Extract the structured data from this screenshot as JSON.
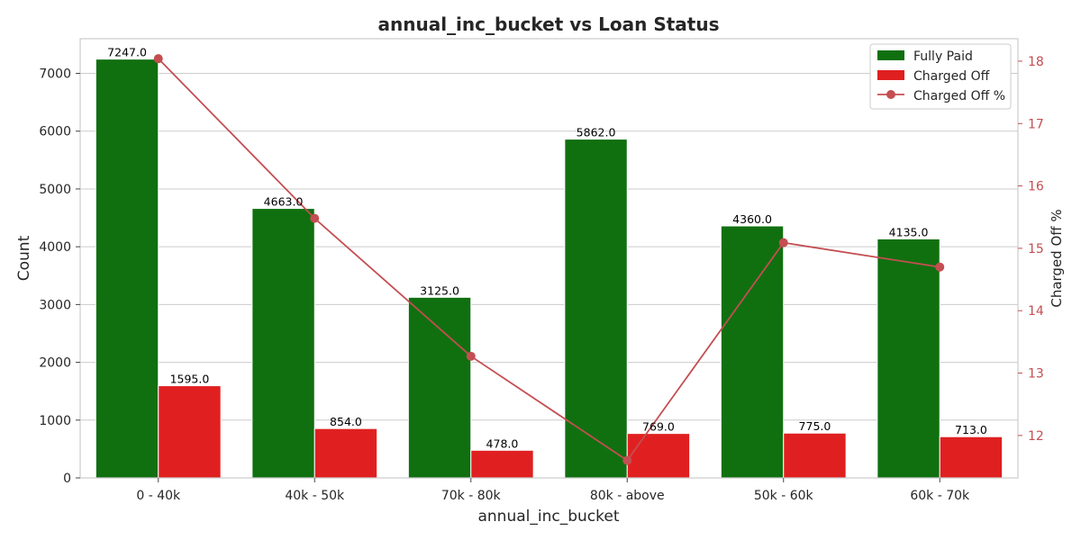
{
  "chart_data": {
    "type": "bar",
    "title": "annual_inc_bucket vs Loan Status",
    "xlabel": "annual_inc_bucket",
    "ylabel": "Count",
    "y2label": "Charged Off %",
    "categories": [
      "0 - 40k",
      "40k - 50k",
      "70k - 80k",
      "80k - above",
      "50k - 60k",
      "60k - 70k"
    ],
    "series": [
      {
        "name": "Fully Paid",
        "type": "bar",
        "color": "#107010",
        "values": [
          7247.0,
          4663.0,
          3125.0,
          5862.0,
          4360.0,
          4135.0
        ],
        "labels": [
          "7247.0",
          "4663.0",
          "3125.0",
          "5862.0",
          "4360.0",
          "4135.0"
        ]
      },
      {
        "name": "Charged Off",
        "type": "bar",
        "color": "#e02020",
        "values": [
          1595.0,
          854.0,
          478.0,
          769.0,
          775.0,
          713.0
        ],
        "labels": [
          "1595.0",
          "854.0",
          "478.0",
          "769.0",
          "775.0",
          "713.0"
        ]
      },
      {
        "name": "Charged Off %",
        "type": "line",
        "axis": "right",
        "color": "#c44e52",
        "values": [
          18.04,
          15.48,
          13.27,
          11.6,
          15.09,
          14.7
        ]
      }
    ],
    "ylim": [
      0,
      7600
    ],
    "yticks": [
      0,
      1000,
      2000,
      3000,
      4000,
      5000,
      6000,
      7000
    ],
    "y2lim": [
      11.32,
      18.36
    ],
    "y2ticks": [
      12,
      13,
      14,
      15,
      16,
      17,
      18
    ],
    "grid": true,
    "legend_position": "top-right",
    "right_axis_color": "#c44e52"
  }
}
